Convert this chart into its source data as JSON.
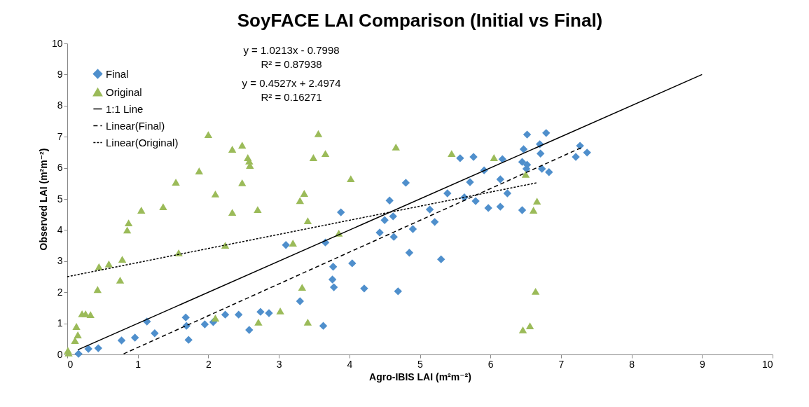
{
  "chart_data": {
    "type": "scatter",
    "title": "SoyFACE LAI Comparison (Initial vs Final)",
    "xlabel": "Agro-IBIS LAI (m²m⁻²)",
    "ylabel": "Observed LAI (m²m⁻²)",
    "xlim": [
      0,
      10
    ],
    "ylim": [
      0,
      10
    ],
    "xticks": [
      0,
      1,
      2,
      3,
      4,
      5,
      6,
      7,
      8,
      9,
      10
    ],
    "yticks": [
      0,
      1,
      2,
      3,
      4,
      5,
      6,
      7,
      8,
      9,
      10
    ],
    "grid": false,
    "legend": "top left",
    "annotations": [
      "y = 1.0213x - 0.7998",
      "R² = 0.87938",
      "y = 0.4527x + 2.4974",
      "R² = 0.16271"
    ],
    "series": [
      {
        "name": "Final",
        "marker": "diamond",
        "color": "#4f8fcc",
        "x": [
          0.16,
          0.3,
          0.44,
          0.77,
          0.96,
          1.13,
          1.24,
          1.68,
          1.69,
          1.72,
          1.95,
          2.07,
          2.24,
          2.43,
          2.58,
          2.74,
          2.86,
          3.1,
          3.3,
          3.66,
          3.63,
          3.77,
          3.76,
          3.78,
          3.88,
          4.04,
          4.21,
          4.43,
          4.5,
          4.57,
          4.62,
          4.63,
          4.69,
          4.8,
          4.85,
          4.9,
          5.14,
          5.21,
          5.3,
          5.39,
          5.57,
          5.63,
          5.71,
          5.76,
          5.79,
          5.91,
          5.97,
          6.14,
          6.14,
          6.17,
          6.24,
          6.52,
          6.79,
          6.47,
          6.7,
          6.71,
          6.45,
          6.51,
          6.52,
          6.73,
          6.83,
          6.45,
          7.27,
          7.21,
          7.37
        ],
        "values": [
          0.02,
          0.18,
          0.2,
          0.45,
          0.54,
          1.06,
          0.68,
          1.19,
          0.92,
          0.47,
          0.97,
          1.04,
          1.28,
          1.28,
          0.79,
          1.37,
          1.33,
          3.52,
          1.71,
          3.6,
          0.92,
          2.82,
          2.41,
          2.16,
          4.57,
          2.93,
          2.12,
          3.92,
          4.32,
          4.95,
          4.44,
          3.78,
          2.03,
          5.52,
          3.27,
          4.03,
          4.66,
          4.26,
          3.06,
          5.18,
          6.31,
          5.05,
          5.54,
          6.35,
          4.93,
          5.92,
          4.71,
          5.63,
          4.75,
          6.28,
          5.18,
          7.07,
          7.12,
          6.6,
          6.76,
          6.46,
          6.19,
          5.97,
          6.1,
          5.97,
          5.86,
          4.64,
          6.71,
          6.35,
          6.49
        ]
      },
      {
        "name": "Original",
        "marker": "triangle",
        "color": "#9bbb59",
        "x": [
          0.01,
          0.02,
          0.13,
          0.15,
          0.11,
          0.21,
          0.26,
          0.33,
          0.43,
          0.45,
          0.59,
          0.75,
          0.78,
          0.85,
          0.87,
          1.05,
          1.36,
          1.54,
          1.58,
          1.87,
          2.0,
          2.1,
          2.1,
          2.24,
          2.34,
          2.34,
          2.48,
          2.48,
          2.56,
          2.58,
          2.59,
          2.7,
          2.71,
          3.02,
          3.2,
          3.33,
          3.41,
          3.41,
          3.3,
          3.36,
          3.49,
          3.56,
          3.66,
          3.85,
          4.02,
          4.66,
          5.45,
          6.05,
          6.5,
          6.66,
          6.61,
          6.64,
          6.56,
          6.46
        ],
        "values": [
          0.13,
          0.05,
          0.9,
          0.63,
          0.45,
          1.31,
          1.31,
          1.28,
          2.09,
          2.82,
          2.91,
          2.39,
          3.06,
          4.0,
          4.23,
          4.64,
          4.75,
          5.54,
          3.27,
          5.9,
          7.07,
          5.16,
          1.17,
          3.51,
          4.57,
          6.6,
          6.73,
          5.52,
          6.33,
          6.22,
          6.08,
          4.66,
          1.04,
          1.4,
          3.58,
          2.16,
          1.04,
          4.3,
          4.95,
          5.18,
          6.33,
          7.1,
          6.46,
          3.9,
          5.65,
          6.67,
          6.46,
          6.33,
          5.79,
          4.93,
          4.64,
          2.03,
          0.92,
          0.79
        ]
      },
      {
        "name": "1:1 Line",
        "type": "line",
        "line_style": "solid",
        "color": "#000000",
        "x": [
          0.15,
          9
        ],
        "values": [
          0.15,
          9
        ]
      },
      {
        "name": "Linear(Final)",
        "type": "line",
        "line_style": "dashed",
        "color": "#000000",
        "x": [
          0.8,
          7.3
        ],
        "values": [
          0.02,
          6.66
        ]
      },
      {
        "name": "Linear(Original)",
        "type": "line",
        "line_style": "dotted",
        "color": "#000000",
        "x": [
          0,
          6.66
        ],
        "values": [
          2.5,
          5.52
        ]
      }
    ]
  }
}
